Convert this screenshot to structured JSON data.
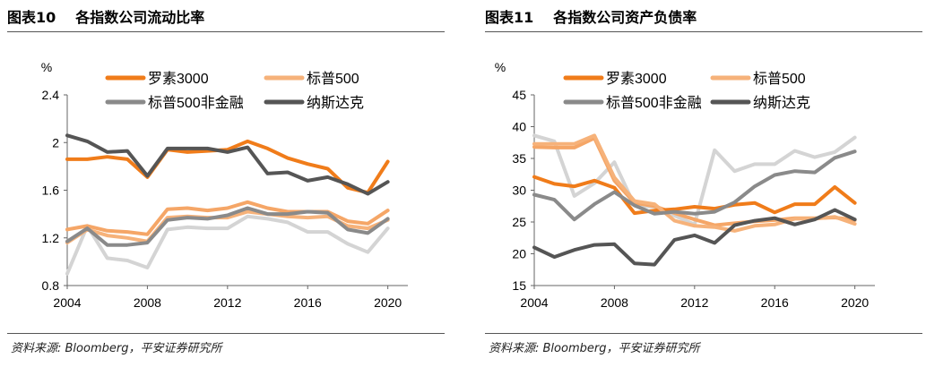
{
  "left": {
    "title_num": "图表10",
    "title_text": "各指数公司流动比率",
    "source": "资料来源: Bloomberg，平安证券研究所"
  },
  "right": {
    "title_num": "图表11",
    "title_text": "各指数公司资产负债率",
    "source": "资料来源: Bloomberg，平安证券研究所"
  },
  "chart_data": [
    {
      "type": "line",
      "title": "各指数公司流动比率",
      "ylabel": "%",
      "ylim": [
        0.8,
        2.4
      ],
      "yticks": [
        0.8,
        1.2,
        1.6,
        2,
        2.4
      ],
      "ytick_labels": [
        "0.8",
        "1.2",
        "1.6",
        "2",
        "2.4"
      ],
      "xlim": [
        2004,
        2021
      ],
      "xticks": [
        2004,
        2008,
        2012,
        2016,
        2020
      ],
      "xtick_labels": [
        "2004",
        "2008",
        "2012",
        "2016",
        "2020"
      ],
      "x": [
        2004,
        2005,
        2006,
        2007,
        2008,
        2009,
        2010,
        2011,
        2012,
        2013,
        2014,
        2015,
        2016,
        2017,
        2018,
        2019,
        2020
      ],
      "series": [
        {
          "name": "罗素3000",
          "color": "#f07c1a",
          "values": [
            1.86,
            1.86,
            1.88,
            1.86,
            1.71,
            1.94,
            1.92,
            1.93,
            1.94,
            2.01,
            1.95,
            1.87,
            1.82,
            1.78,
            1.62,
            1.58,
            1.84
          ]
        },
        {
          "name": "标普500",
          "color": "#f6b27a",
          "values": [
            1.16,
            1.27,
            1.22,
            1.2,
            1.17,
            1.37,
            1.38,
            1.37,
            1.37,
            1.42,
            1.4,
            1.38,
            1.37,
            1.38,
            1.3,
            1.28,
            1.35
          ]
        },
        {
          "name": "标普500非金融",
          "color": "#8a8a8a",
          "values": [
            1.17,
            1.28,
            1.14,
            1.14,
            1.16,
            1.35,
            1.37,
            1.36,
            1.39,
            1.45,
            1.4,
            1.4,
            1.42,
            1.41,
            1.27,
            1.24,
            1.36
          ]
        },
        {
          "name": "纳斯达克",
          "color": "#555555",
          "values": [
            2.06,
            2.01,
            1.92,
            1.93,
            1.72,
            1.95,
            1.95,
            1.95,
            1.92,
            1.96,
            1.74,
            1.75,
            1.68,
            1.71,
            1.65,
            1.57,
            1.67
          ]
        },
        {
          "name": "",
          "color": "#d4d4d4",
          "values": [
            0.9,
            1.3,
            1.03,
            1.01,
            0.95,
            1.27,
            1.29,
            1.28,
            1.28,
            1.38,
            1.36,
            1.33,
            1.25,
            1.25,
            1.15,
            1.08,
            1.28
          ]
        },
        {
          "name": "",
          "color": "#f5a667",
          "values": [
            1.27,
            1.3,
            1.26,
            1.25,
            1.23,
            1.44,
            1.45,
            1.43,
            1.45,
            1.5,
            1.45,
            1.42,
            1.42,
            1.42,
            1.34,
            1.32,
            1.43
          ]
        }
      ]
    },
    {
      "type": "line",
      "title": "各指数公司资产负债率",
      "ylabel": "%",
      "ylim": [
        15,
        45
      ],
      "yticks": [
        15,
        20,
        25,
        30,
        35,
        40,
        45
      ],
      "ytick_labels": [
        "15",
        "20",
        "25",
        "30",
        "35",
        "40",
        "45"
      ],
      "xlim": [
        2004,
        2021
      ],
      "xticks": [
        2004,
        2008,
        2012,
        2016,
        2020
      ],
      "xtick_labels": [
        "2004",
        "2008",
        "2012",
        "2016",
        "2020"
      ],
      "x": [
        2004,
        2005,
        2006,
        2007,
        2008,
        2009,
        2010,
        2011,
        2012,
        2013,
        2014,
        2015,
        2016,
        2017,
        2018,
        2019,
        2020
      ],
      "series": [
        {
          "name": "罗素3000",
          "color": "#f07c1a",
          "values": [
            32.1,
            31,
            30.6,
            31.5,
            30.4,
            26.4,
            26.8,
            27,
            27.4,
            27.1,
            27.7,
            28,
            26.5,
            27.8,
            27.8,
            30.5,
            28
          ]
        },
        {
          "name": "标普500",
          "color": "#f6b27a",
          "values": [
            37.3,
            37.3,
            37.3,
            38.6,
            32,
            28.3,
            27.8,
            25.2,
            24.4,
            24.2,
            23.6,
            24.4,
            24.6,
            25.5,
            25.5,
            25.8,
            24.7
          ]
        },
        {
          "name": "标普500非金融",
          "color": "#8a8a8a",
          "values": [
            29.3,
            28.5,
            25.4,
            27.8,
            29.7,
            27.6,
            26.3,
            26.6,
            26.3,
            26.6,
            28.1,
            30.6,
            32.4,
            33,
            32.8,
            35.1,
            36.1
          ]
        },
        {
          "name": "纳斯达克",
          "color": "#555555",
          "values": [
            21,
            19.5,
            20.6,
            21.4,
            21.5,
            18.5,
            18.3,
            22.2,
            22.9,
            21.7,
            24.5,
            25.2,
            25.6,
            24.6,
            25.4,
            26.9,
            25.4
          ]
        },
        {
          "name": "",
          "color": "#d4d4d4",
          "values": [
            38.6,
            37.7,
            29.1,
            31.1,
            34.4,
            27.6,
            27.4,
            26,
            24.6,
            36.3,
            33,
            34.1,
            34.1,
            36.2,
            35.2,
            36,
            38.3
          ]
        },
        {
          "name": "",
          "color": "#f5a667",
          "values": [
            36.8,
            36.7,
            36.7,
            38.2,
            31.5,
            28,
            27.5,
            26.4,
            25.4,
            24.5,
            24.8,
            25.1,
            25.3,
            25.6,
            25.6,
            25.7,
            25.3
          ]
        }
      ]
    }
  ]
}
